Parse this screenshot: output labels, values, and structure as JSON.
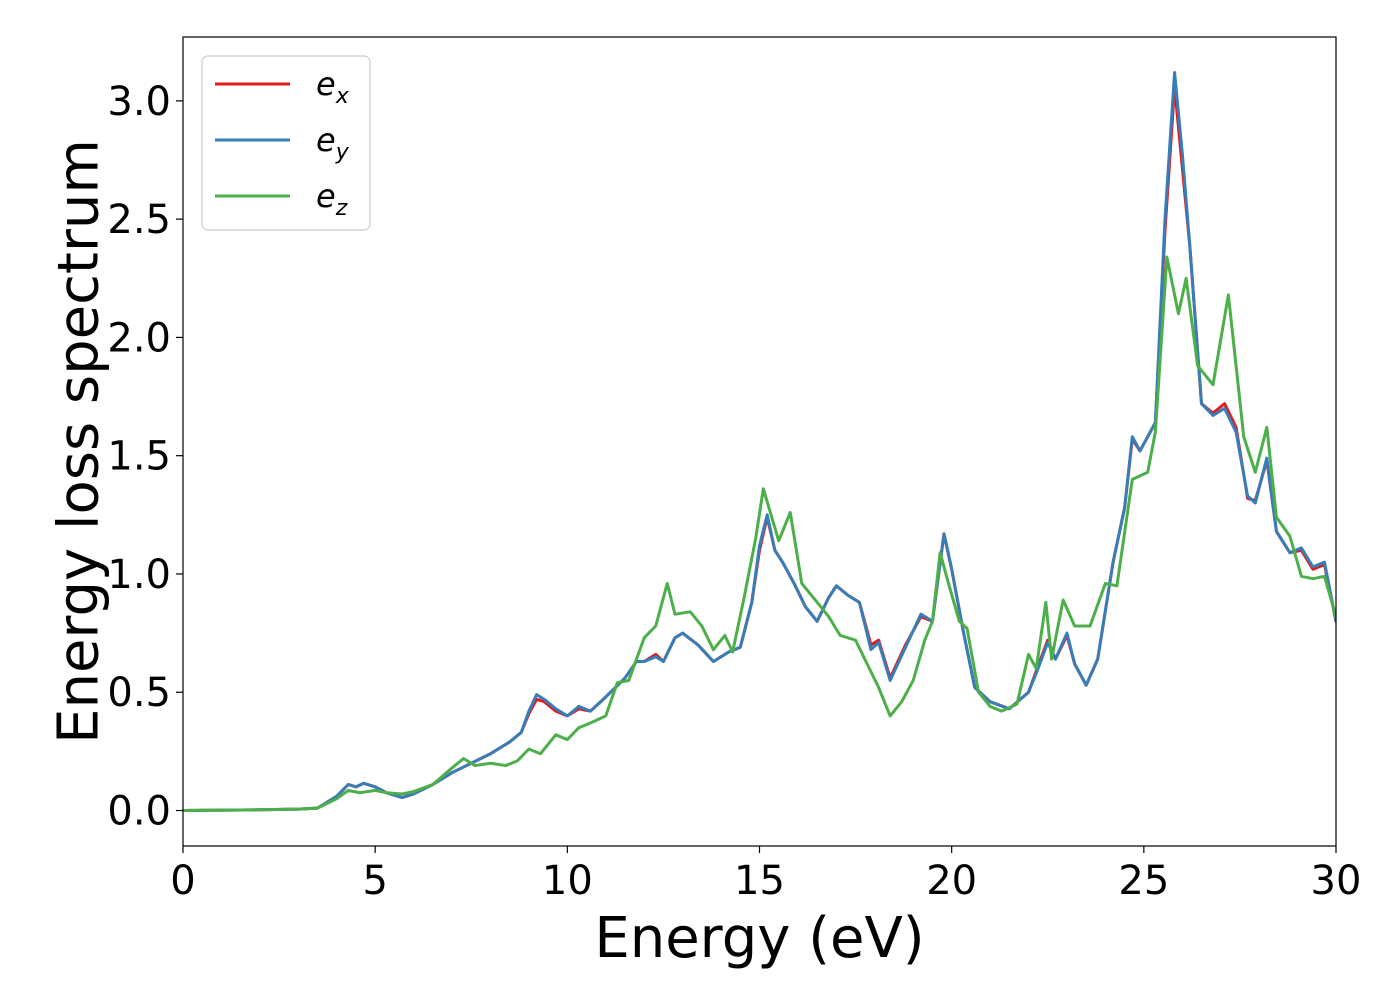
{
  "chart_data": {
    "type": "line",
    "title": "",
    "xlabel": "Energy (eV)",
    "ylabel": "Energy loss spectrum",
    "xlim": [
      0,
      30
    ],
    "ylim": [
      -0.15,
      3.27
    ],
    "xticks": [
      0,
      5,
      10,
      15,
      20,
      25,
      30
    ],
    "xtick_labels": [
      "0",
      "5",
      "10",
      "15",
      "20",
      "25",
      "30"
    ],
    "yticks": [
      0.0,
      0.5,
      1.0,
      1.5,
      2.0,
      2.5,
      3.0
    ],
    "ytick_labels": [
      "0.0",
      "0.5",
      "1.0",
      "1.5",
      "2.0",
      "2.5",
      "3.0"
    ],
    "grid": false,
    "legend_position": "top-left",
    "series": [
      {
        "name": "e_x",
        "legend_base": "e",
        "legend_sub": "x",
        "color": "#e41a1c",
        "points": [
          [
            0,
            0
          ],
          [
            2,
            0.003
          ],
          [
            3,
            0.006
          ],
          [
            3.5,
            0.01
          ],
          [
            4,
            0.06
          ],
          [
            4.3,
            0.11
          ],
          [
            4.5,
            0.1
          ],
          [
            4.7,
            0.115
          ],
          [
            5,
            0.1
          ],
          [
            5.3,
            0.075
          ],
          [
            5.7,
            0.055
          ],
          [
            6,
            0.07
          ],
          [
            6.5,
            0.11
          ],
          [
            7,
            0.16
          ],
          [
            7.5,
            0.2
          ],
          [
            8,
            0.24
          ],
          [
            8.5,
            0.29
          ],
          [
            8.8,
            0.33
          ],
          [
            9,
            0.41
          ],
          [
            9.2,
            0.47
          ],
          [
            9.4,
            0.46
          ],
          [
            9.7,
            0.42
          ],
          [
            10,
            0.4
          ],
          [
            10.3,
            0.43
          ],
          [
            10.6,
            0.42
          ],
          [
            11,
            0.48
          ],
          [
            11.5,
            0.56
          ],
          [
            11.8,
            0.63
          ],
          [
            12,
            0.63
          ],
          [
            12.3,
            0.66
          ],
          [
            12.5,
            0.63
          ],
          [
            12.8,
            0.73
          ],
          [
            13,
            0.75
          ],
          [
            13.4,
            0.7
          ],
          [
            13.8,
            0.63
          ],
          [
            14.2,
            0.67
          ],
          [
            14.5,
            0.69
          ],
          [
            14.8,
            0.88
          ],
          [
            15,
            1.1
          ],
          [
            15.2,
            1.24
          ],
          [
            15.4,
            1.1
          ],
          [
            15.6,
            1.05
          ],
          [
            15.9,
            0.96
          ],
          [
            16.2,
            0.86
          ],
          [
            16.5,
            0.8
          ],
          [
            16.8,
            0.9
          ],
          [
            17,
            0.95
          ],
          [
            17.3,
            0.91
          ],
          [
            17.6,
            0.88
          ],
          [
            17.9,
            0.7
          ],
          [
            18.1,
            0.72
          ],
          [
            18.4,
            0.56
          ],
          [
            18.8,
            0.7
          ],
          [
            19.2,
            0.82
          ],
          [
            19.5,
            0.8
          ],
          [
            19.8,
            1.17
          ],
          [
            20,
            1.02
          ],
          [
            20.3,
            0.76
          ],
          [
            20.6,
            0.52
          ],
          [
            21,
            0.46
          ],
          [
            21.5,
            0.43
          ],
          [
            22,
            0.5
          ],
          [
            22.2,
            0.59
          ],
          [
            22.5,
            0.72
          ],
          [
            22.7,
            0.64
          ],
          [
            23,
            0.74
          ],
          [
            23.2,
            0.62
          ],
          [
            23.5,
            0.53
          ],
          [
            23.8,
            0.64
          ],
          [
            24.2,
            1.05
          ],
          [
            24.5,
            1.28
          ],
          [
            24.7,
            1.57
          ],
          [
            24.9,
            1.52
          ],
          [
            25.3,
            1.64
          ],
          [
            25.55,
            2.45
          ],
          [
            25.8,
            3.06
          ],
          [
            26,
            2.72
          ],
          [
            26.2,
            2.38
          ],
          [
            26.5,
            1.72
          ],
          [
            26.8,
            1.68
          ],
          [
            27.1,
            1.72
          ],
          [
            27.4,
            1.62
          ],
          [
            27.7,
            1.32
          ],
          [
            27.9,
            1.31
          ],
          [
            28.2,
            1.48
          ],
          [
            28.45,
            1.18
          ],
          [
            28.8,
            1.09
          ],
          [
            29.1,
            1.1
          ],
          [
            29.4,
            1.02
          ],
          [
            29.7,
            1.04
          ],
          [
            30,
            0.8
          ]
        ]
      },
      {
        "name": "e_y",
        "legend_base": "e",
        "legend_sub": "y",
        "color": "#377eb8",
        "points": [
          [
            0,
            0
          ],
          [
            2,
            0.003
          ],
          [
            3,
            0.006
          ],
          [
            3.5,
            0.01
          ],
          [
            4,
            0.06
          ],
          [
            4.3,
            0.11
          ],
          [
            4.5,
            0.1
          ],
          [
            4.7,
            0.115
          ],
          [
            5,
            0.1
          ],
          [
            5.3,
            0.075
          ],
          [
            5.7,
            0.055
          ],
          [
            6,
            0.07
          ],
          [
            6.5,
            0.11
          ],
          [
            7,
            0.16
          ],
          [
            7.5,
            0.2
          ],
          [
            8,
            0.24
          ],
          [
            8.5,
            0.29
          ],
          [
            8.8,
            0.33
          ],
          [
            9,
            0.42
          ],
          [
            9.2,
            0.49
          ],
          [
            9.4,
            0.47
          ],
          [
            9.7,
            0.43
          ],
          [
            10,
            0.4
          ],
          [
            10.3,
            0.44
          ],
          [
            10.6,
            0.42
          ],
          [
            11,
            0.48
          ],
          [
            11.5,
            0.56
          ],
          [
            11.8,
            0.63
          ],
          [
            12,
            0.63
          ],
          [
            12.3,
            0.65
          ],
          [
            12.5,
            0.63
          ],
          [
            12.8,
            0.73
          ],
          [
            13,
            0.75
          ],
          [
            13.4,
            0.7
          ],
          [
            13.8,
            0.63
          ],
          [
            14.2,
            0.67
          ],
          [
            14.5,
            0.69
          ],
          [
            14.8,
            0.88
          ],
          [
            15,
            1.12
          ],
          [
            15.2,
            1.25
          ],
          [
            15.4,
            1.1
          ],
          [
            15.6,
            1.05
          ],
          [
            15.9,
            0.96
          ],
          [
            16.2,
            0.86
          ],
          [
            16.5,
            0.8
          ],
          [
            16.8,
            0.9
          ],
          [
            17,
            0.95
          ],
          [
            17.3,
            0.91
          ],
          [
            17.6,
            0.88
          ],
          [
            17.9,
            0.68
          ],
          [
            18.1,
            0.71
          ],
          [
            18.4,
            0.55
          ],
          [
            18.8,
            0.69
          ],
          [
            19.2,
            0.83
          ],
          [
            19.5,
            0.8
          ],
          [
            19.8,
            1.17
          ],
          [
            20,
            1.02
          ],
          [
            20.3,
            0.76
          ],
          [
            20.6,
            0.52
          ],
          [
            21,
            0.46
          ],
          [
            21.5,
            0.43
          ],
          [
            22,
            0.5
          ],
          [
            22.2,
            0.58
          ],
          [
            22.5,
            0.71
          ],
          [
            22.7,
            0.64
          ],
          [
            23,
            0.75
          ],
          [
            23.2,
            0.62
          ],
          [
            23.5,
            0.53
          ],
          [
            23.8,
            0.64
          ],
          [
            24.2,
            1.05
          ],
          [
            24.5,
            1.28
          ],
          [
            24.7,
            1.58
          ],
          [
            24.9,
            1.52
          ],
          [
            25.3,
            1.64
          ],
          [
            25.55,
            2.5
          ],
          [
            25.8,
            3.12
          ],
          [
            26,
            2.78
          ],
          [
            26.2,
            2.38
          ],
          [
            26.5,
            1.72
          ],
          [
            26.8,
            1.67
          ],
          [
            27.1,
            1.7
          ],
          [
            27.4,
            1.6
          ],
          [
            27.7,
            1.33
          ],
          [
            27.9,
            1.3
          ],
          [
            28.2,
            1.49
          ],
          [
            28.45,
            1.18
          ],
          [
            28.8,
            1.09
          ],
          [
            29.1,
            1.11
          ],
          [
            29.4,
            1.03
          ],
          [
            29.7,
            1.05
          ],
          [
            30,
            0.8
          ]
        ]
      },
      {
        "name": "e_z",
        "legend_base": "e",
        "legend_sub": "z",
        "color": "#4daf4a",
        "points": [
          [
            0,
            0
          ],
          [
            2,
            0.003
          ],
          [
            3,
            0.006
          ],
          [
            3.5,
            0.01
          ],
          [
            4,
            0.05
          ],
          [
            4.3,
            0.085
          ],
          [
            4.6,
            0.075
          ],
          [
            5,
            0.085
          ],
          [
            5.3,
            0.075
          ],
          [
            5.7,
            0.07
          ],
          [
            6,
            0.08
          ],
          [
            6.5,
            0.11
          ],
          [
            7,
            0.18
          ],
          [
            7.3,
            0.22
          ],
          [
            7.6,
            0.19
          ],
          [
            8,
            0.2
          ],
          [
            8.4,
            0.19
          ],
          [
            8.7,
            0.21
          ],
          [
            9,
            0.26
          ],
          [
            9.3,
            0.24
          ],
          [
            9.7,
            0.32
          ],
          [
            10,
            0.3
          ],
          [
            10.3,
            0.35
          ],
          [
            10.6,
            0.37
          ],
          [
            11,
            0.4
          ],
          [
            11.3,
            0.54
          ],
          [
            11.6,
            0.55
          ],
          [
            12,
            0.73
          ],
          [
            12.3,
            0.78
          ],
          [
            12.6,
            0.96
          ],
          [
            12.8,
            0.83
          ],
          [
            13.2,
            0.84
          ],
          [
            13.5,
            0.78
          ],
          [
            13.8,
            0.68
          ],
          [
            14.1,
            0.74
          ],
          [
            14.3,
            0.67
          ],
          [
            14.6,
            0.9
          ],
          [
            14.9,
            1.15
          ],
          [
            15.1,
            1.36
          ],
          [
            15.5,
            1.14
          ],
          [
            15.8,
            1.26
          ],
          [
            16.1,
            0.96
          ],
          [
            16.5,
            0.88
          ],
          [
            16.8,
            0.82
          ],
          [
            17.1,
            0.74
          ],
          [
            17.5,
            0.72
          ],
          [
            17.8,
            0.62
          ],
          [
            18.1,
            0.52
          ],
          [
            18.4,
            0.4
          ],
          [
            18.7,
            0.46
          ],
          [
            19,
            0.55
          ],
          [
            19.3,
            0.72
          ],
          [
            19.5,
            0.8
          ],
          [
            19.7,
            1.09
          ],
          [
            19.9,
            0.97
          ],
          [
            20.2,
            0.8
          ],
          [
            20.4,
            0.77
          ],
          [
            20.7,
            0.5
          ],
          [
            21,
            0.44
          ],
          [
            21.3,
            0.42
          ],
          [
            21.7,
            0.45
          ],
          [
            22,
            0.66
          ],
          [
            22.2,
            0.6
          ],
          [
            22.45,
            0.88
          ],
          [
            22.6,
            0.64
          ],
          [
            22.9,
            0.89
          ],
          [
            23.2,
            0.78
          ],
          [
            23.6,
            0.78
          ],
          [
            24,
            0.96
          ],
          [
            24.3,
            0.95
          ],
          [
            24.7,
            1.4
          ],
          [
            25.1,
            1.43
          ],
          [
            25.3,
            1.6
          ],
          [
            25.6,
            2.34
          ],
          [
            25.9,
            2.1
          ],
          [
            26.1,
            2.25
          ],
          [
            26.4,
            1.88
          ],
          [
            26.8,
            1.8
          ],
          [
            27.2,
            2.18
          ],
          [
            27.6,
            1.58
          ],
          [
            27.9,
            1.43
          ],
          [
            28.2,
            1.62
          ],
          [
            28.45,
            1.24
          ],
          [
            28.8,
            1.16
          ],
          [
            29.1,
            0.99
          ],
          [
            29.4,
            0.98
          ],
          [
            29.7,
            0.99
          ],
          [
            30,
            0.82
          ]
        ]
      }
    ]
  }
}
